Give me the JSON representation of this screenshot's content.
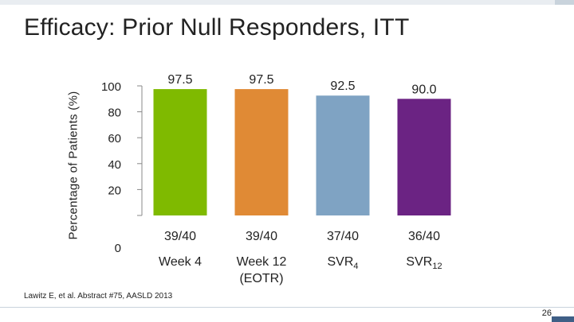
{
  "slide": {
    "title": "Efficacy: Prior Null Responders, ITT",
    "footnote": "Lawitz E, et al. Abstract #75, AASLD 2013",
    "page_number": "26"
  },
  "chart_data": {
    "type": "bar",
    "ylabel": "Percentage of Patients (%)",
    "ylim": [
      0,
      100
    ],
    "yticks": [
      "0",
      "20",
      "40",
      "60",
      "80",
      "100"
    ],
    "grid": false,
    "categories": [
      {
        "label": "Week 4"
      },
      {
        "label": "Week 12",
        "label2": "(EOTR)"
      },
      {
        "label": "SVR",
        "sub": "4"
      },
      {
        "label": "SVR",
        "sub": "12"
      }
    ],
    "values": [
      97.5,
      97.5,
      92.5,
      90.0
    ],
    "value_labels": [
      "97.5",
      "97.5",
      "92.5",
      "90.0"
    ],
    "counts": [
      "39/40",
      "39/40",
      "37/40",
      "36/40"
    ],
    "colors": [
      "#7fba00",
      "#e08a35",
      "#7fa3c3",
      "#6b2383"
    ]
  }
}
